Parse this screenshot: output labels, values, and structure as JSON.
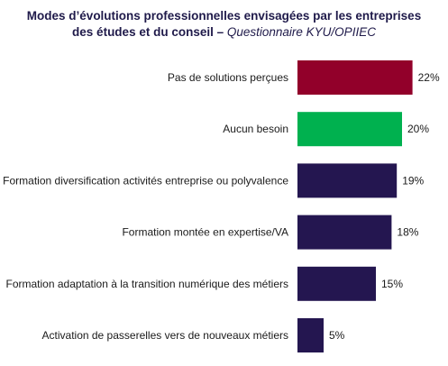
{
  "chart_data": {
    "type": "bar",
    "orientation": "horizontal",
    "title_main": "Modes d’évolutions professionnelles envisagées par les entreprises",
    "title_line2": "des études et du conseil –",
    "title_source": "Questionnaire KYU/OPIIEC",
    "categories": [
      "Pas de solutions perçues",
      "Aucun besoin",
      "Formation diversification activités entreprise ou polyvalence",
      "Formation montée en expertise/VA",
      "Formation adaptation à la transition numérique des métiers",
      "Activation de passerelles vers de nouveaux métiers"
    ],
    "values": [
      22,
      20,
      19,
      18,
      15,
      5
    ],
    "value_labels": [
      "22%",
      "20%",
      "19%",
      "18%",
      "15%",
      "5%"
    ],
    "colors": [
      "#92002a",
      "#00b14f",
      "#241650",
      "#241650",
      "#241650",
      "#241650"
    ],
    "xlim": [
      0,
      22
    ],
    "grid": false,
    "legend": "none"
  }
}
